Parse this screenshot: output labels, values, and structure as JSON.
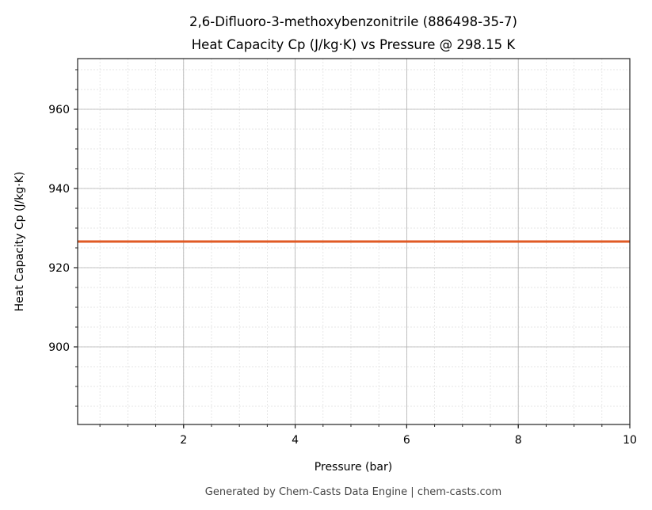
{
  "chart_data": {
    "type": "line",
    "title": "2,6-Difluoro-3-methoxybenzonitrile (886498-35-7)",
    "subtitle": "Heat Capacity Cp (J/kg·K) vs Pressure @ 298.15 K",
    "xlabel": "Pressure (bar)",
    "ylabel": "Heat Capacity Cp (J/kg·K)",
    "xlim": [
      0.1,
      10
    ],
    "ylim": [
      880.4,
      972.8
    ],
    "xticks": [
      2,
      4,
      6,
      8,
      10
    ],
    "yticks": [
      900,
      920,
      940,
      960
    ],
    "x_minor_step": 0.5,
    "y_minor_step": 5,
    "grid": true,
    "series": [
      {
        "x": [
          0.1,
          10
        ],
        "y": [
          926.6,
          926.6
        ],
        "color": "#e05a24"
      }
    ]
  },
  "footer": "Generated by Chem-Casts Data Engine | chem-casts.com"
}
